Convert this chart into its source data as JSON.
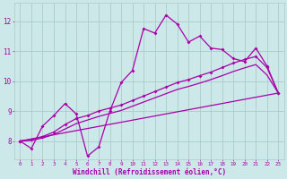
{
  "xlabel": "Windchill (Refroidissement éolien,°C)",
  "bg_color": "#cce8e8",
  "grid_color": "#aacccc",
  "line_color": "#aa00aa",
  "xlim": [
    -0.5,
    23.5
  ],
  "ylim": [
    7.4,
    12.6
  ],
  "yticks": [
    8,
    9,
    10,
    11,
    12
  ],
  "xticks": [
    0,
    1,
    2,
    3,
    4,
    5,
    6,
    7,
    8,
    9,
    10,
    11,
    12,
    13,
    14,
    15,
    16,
    17,
    18,
    19,
    20,
    21,
    22,
    23
  ],
  "line1_x": [
    0,
    1,
    2,
    3,
    4,
    5,
    6,
    7,
    8,
    9,
    10,
    11,
    12,
    13,
    14,
    15,
    16,
    17,
    18,
    19,
    20,
    21,
    22,
    23
  ],
  "line1_y": [
    8.0,
    7.75,
    8.5,
    8.85,
    9.25,
    8.9,
    7.5,
    7.8,
    9.0,
    9.95,
    10.35,
    11.75,
    11.6,
    12.2,
    11.9,
    11.3,
    11.5,
    11.1,
    11.05,
    10.75,
    10.65,
    11.1,
    10.5,
    9.6
  ],
  "line2_x": [
    0,
    1,
    2,
    3,
    4,
    5,
    6,
    7,
    8,
    9,
    10,
    11,
    12,
    13,
    14,
    15,
    16,
    17,
    18,
    19,
    20,
    21,
    22,
    23
  ],
  "line2_y": [
    8.0,
    8.05,
    8.15,
    8.3,
    8.55,
    8.75,
    8.85,
    9.0,
    9.1,
    9.2,
    9.35,
    9.5,
    9.65,
    9.8,
    9.95,
    10.05,
    10.18,
    10.3,
    10.45,
    10.6,
    10.72,
    10.82,
    10.45,
    9.6
  ],
  "line3_x": [
    0,
    1,
    2,
    3,
    4,
    5,
    6,
    7,
    8,
    9,
    10,
    11,
    12,
    13,
    14,
    15,
    16,
    17,
    18,
    19,
    20,
    21,
    22,
    23
  ],
  "line3_y": [
    8.0,
    8.02,
    8.1,
    8.22,
    8.4,
    8.58,
    8.7,
    8.82,
    8.92,
    9.02,
    9.16,
    9.3,
    9.44,
    9.58,
    9.72,
    9.82,
    9.93,
    10.05,
    10.18,
    10.32,
    10.44,
    10.55,
    10.2,
    9.6
  ],
  "line4_x": [
    0,
    23
  ],
  "line4_y": [
    8.0,
    9.6
  ]
}
